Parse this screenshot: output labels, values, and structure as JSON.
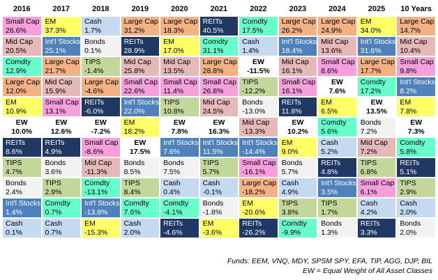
{
  "table": {
    "columns": [
      "2016",
      "2017",
      "2018",
      "2019",
      "2020",
      "2021",
      "2022",
      "2023",
      "2024",
      "2025",
      "10 Years"
    ],
    "rows": [
      [
        [
          "Small Cap",
          "26.6%"
        ],
        [
          "EM",
          "37.3%"
        ],
        [
          "Cash",
          "1.7%"
        ],
        [
          "Large Cap",
          "31.2%"
        ],
        [
          "Large Cap",
          "18.3%"
        ],
        [
          "REITs",
          "40.5%"
        ],
        [
          "Comdty",
          "17.5%"
        ],
        [
          "Large Cap",
          "26.2%"
        ],
        [
          "Large Cap",
          "24.9%"
        ],
        [
          "EM",
          "34.0%"
        ],
        [
          "Large Cap",
          "14.7%"
        ]
      ],
      [
        [
          "Mid Cap",
          "20.5%"
        ],
        [
          "Int'l Stocks",
          "25.1%"
        ],
        [
          "Bonds",
          "0.1%"
        ],
        [
          "REITs",
          "28.9%"
        ],
        [
          "EM",
          "17.0%"
        ],
        [
          "Comdty",
          "31.1%"
        ],
        [
          "Cash",
          "1.4%"
        ],
        [
          "Int'l Stocks",
          "18.4%"
        ],
        [
          "Mid Cap",
          "13.6%"
        ],
        [
          "Int'l Stocks",
          "31.6%"
        ],
        [
          "Mid Cap",
          "10.4%"
        ]
      ],
      [
        [
          "Comdty",
          "12.9%"
        ],
        [
          "Large Cap",
          "21.7%"
        ],
        [
          "TIPS",
          "-1.4%"
        ],
        [
          "Mid Cap",
          "25.8%"
        ],
        [
          "Mid Cap",
          "13.5%"
        ],
        [
          "Large Cap",
          "28.8%"
        ],
        [
          "EW",
          "-11.5%"
        ],
        [
          "Mid Cap",
          "16.1%"
        ],
        [
          "Small Cap",
          "8.6%"
        ],
        [
          "Large Cap",
          "17.7%"
        ],
        [
          "Small Cap",
          "9.8%"
        ]
      ],
      [
        [
          "Large Cap",
          "12.0%"
        ],
        [
          "Mid Cap",
          "15.9%"
        ],
        [
          "Large Cap",
          "-4.6%"
        ],
        [
          "Small Cap",
          "22.6%"
        ],
        [
          "Small Cap",
          "11.4%"
        ],
        [
          "Small Cap",
          "26.8%"
        ],
        [
          "TIPS",
          "-12.2%"
        ],
        [
          "Small Cap",
          "16.1%"
        ],
        [
          "EW",
          "7.6%"
        ],
        [
          "Comdty",
          "17.2%"
        ],
        [
          "Int'l Stocks",
          "8.2%"
        ]
      ],
      [
        [
          "EM",
          "10.9%"
        ],
        [
          "Small Cap",
          "13.1%"
        ],
        [
          "REITs",
          "-6.0%"
        ],
        [
          "Int'l Stocks",
          "22.0%"
        ],
        [
          "TIPS",
          "10.8%"
        ],
        [
          "Mid Cap",
          "24.5%"
        ],
        [
          "Bonds",
          "-13.0%"
        ],
        [
          "REITs",
          "11.8%"
        ],
        [
          "EM",
          "6.5%"
        ],
        [
          "EW",
          "13.5%"
        ],
        [
          "EM",
          "7.8%"
        ]
      ],
      [
        [
          "EW",
          "10.0%"
        ],
        [
          "EW",
          "12.6%"
        ],
        [
          "EW",
          "-7.2%"
        ],
        [
          "EM",
          "18.2%"
        ],
        [
          "EW",
          "7.8%"
        ],
        [
          "EW",
          "16.3%"
        ],
        [
          "Mid Cap",
          "-13.3%"
        ],
        [
          "EW",
          "10.2%"
        ],
        [
          "Comdty",
          "5.6%"
        ],
        [
          "Bonds",
          "7.2%"
        ],
        [
          "EW",
          "7.3%"
        ]
      ],
      [
        [
          "REITs",
          "8.6%"
        ],
        [
          "REITs",
          "4.9%"
        ],
        [
          "Small Cap",
          "-8.6%"
        ],
        [
          "EW",
          "17.5%"
        ],
        [
          "Int'l Stocks",
          "7.6%"
        ],
        [
          "Int'l Stocks",
          "11.5%"
        ],
        [
          "Int'l Stocks",
          "-14.4%"
        ],
        [
          "EM",
          "9.0%"
        ],
        [
          "Cash",
          "5.2%"
        ],
        [
          "Mid Cap",
          "7.2%"
        ],
        [
          "Comdty",
          "5.8%"
        ]
      ],
      [
        [
          "TIPS",
          "4.7%"
        ],
        [
          "Bonds",
          "3.6%"
        ],
        [
          "Mid Cap",
          "-11.3%"
        ],
        [
          "Bonds",
          "8.5%"
        ],
        [
          "Bonds",
          "7.5%"
        ],
        [
          "TIPS",
          "5.7%"
        ],
        [
          "Small Cap",
          "-16.1%"
        ],
        [
          "Bonds",
          "5.7%"
        ],
        [
          "REITs",
          "4.8%"
        ],
        [
          "TIPS",
          "6.8%"
        ],
        [
          "REITs",
          "5.1%"
        ]
      ],
      [
        [
          "Bonds",
          "2.4%"
        ],
        [
          "TIPS",
          "2.9%"
        ],
        [
          "Comdty",
          "-13.1%"
        ],
        [
          "TIPS",
          "8.4%"
        ],
        [
          "Cash",
          "0.4%"
        ],
        [
          "Cash",
          "-0.1%"
        ],
        [
          "Large Cap",
          "-18.2%"
        ],
        [
          "Cash",
          "4.9%"
        ],
        [
          "Int'l Stocks",
          "3.5%"
        ],
        [
          "Small Cap",
          "6.1%"
        ],
        [
          "TIPS",
          "2.9%"
        ]
      ],
      [
        [
          "Int'l Stocks",
          "1.4%"
        ],
        [
          "Comdty",
          "0.7%"
        ],
        [
          "Int'l Stocks",
          "-13.8%"
        ],
        [
          "Comdty",
          "7.6%"
        ],
        [
          "Comdty",
          "-4.1%"
        ],
        [
          "Bonds",
          "-1.8%"
        ],
        [
          "EM",
          "-20.6%"
        ],
        [
          "TIPS",
          "3.8%"
        ],
        [
          "TIPS",
          "1.7%"
        ],
        [
          "Cash",
          "4.2%"
        ],
        [
          "Cash",
          "2.0%"
        ]
      ],
      [
        [
          "Cash",
          "0.1%"
        ],
        [
          "Cash",
          "0.7%"
        ],
        [
          "EM",
          "-15.3%"
        ],
        [
          "Cash",
          "2.0%"
        ],
        [
          "REITs",
          "-4.6%"
        ],
        [
          "EM",
          "-3.6%"
        ],
        [
          "REITs",
          "-26.2%"
        ],
        [
          "Comdty",
          "-9.9%"
        ],
        [
          "Bonds",
          "1.3%"
        ],
        [
          "REITs",
          "3.3%"
        ],
        [
          "Bonds",
          "2.0%"
        ]
      ]
    ],
    "asset_colors": {
      "Small Cap": "#f79fdc",
      "EM": "#ffff66",
      "Cash": "#c5d9f1",
      "Large Cap": "#f4b183",
      "Mid Cap": "#e6b9b8",
      "REITs": "#1f3864",
      "Comdty": "#66ffcc",
      "Int'l Stocks": "#4f81bd",
      "Bonds": "#f2f2f2",
      "TIPS": "#c4d79b",
      "EW": "#ffffff"
    },
    "light_text_assets": [
      "REITs",
      "Int'l Stocks"
    ],
    "bold_assets": [
      "EW"
    ]
  },
  "footnotes": [
    "Funds: EEM, VNQ, MDY, SPSM SPY, EFA, TIP, AGG, DJP, BIL",
    "EW = Equal Weight of All Asset Classes"
  ]
}
